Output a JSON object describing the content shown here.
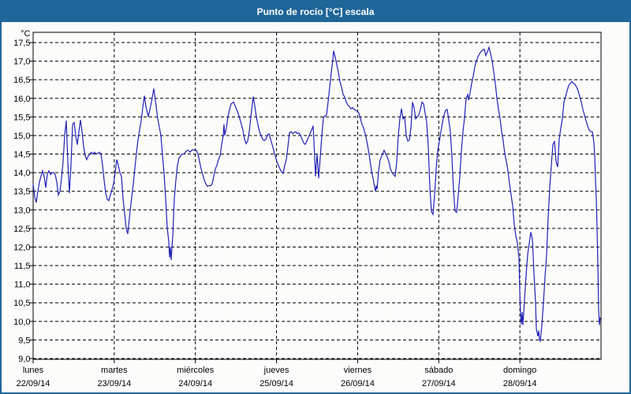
{
  "window": {
    "title": "Punto de rocío [°C] escala",
    "title_bar_color": "#1f6699",
    "border_color": "#1f6699",
    "background_color": "#fcfdfa"
  },
  "chart_data": {
    "type": "line",
    "title": "Punto de rocío [°C] escala",
    "ylabel": "°C",
    "ylim": [
      9.0,
      17.5
    ],
    "y_tick_step": 0.5,
    "y_tick_labels": [
      "17,5",
      "17,0",
      "16,5",
      "16,0",
      "15,5",
      "15,0",
      "14,5",
      "14,0",
      "13,5",
      "13,0",
      "12,5",
      "12,0",
      "11,5",
      "11,0",
      "10,5",
      "10,0",
      "9,5",
      "9,0"
    ],
    "grid": "dashed",
    "legend": "none",
    "line_color": "#2121b8",
    "grid_color": "#000000",
    "x_days": [
      {
        "name": "lunes",
        "date": "22/09/14"
      },
      {
        "name": "martes",
        "date": "23/09/14"
      },
      {
        "name": "miércoles",
        "date": "24/09/14"
      },
      {
        "name": "jueves",
        "date": "25/09/14"
      },
      {
        "name": "viernes",
        "date": "26/09/14"
      },
      {
        "name": "sábado",
        "date": "27/09/14"
      },
      {
        "name": "domingo",
        "date": "28/09/14"
      }
    ],
    "x_note": "x is time in 1/720 of the displayed week (0 = lunes 22/09 00:00, 720 = end of domingo 28/09); y is dew point in °C",
    "x_units_total": 720,
    "points": [
      [
        0,
        13.7
      ],
      [
        2,
        13.35
      ],
      [
        4,
        13.2
      ],
      [
        6,
        13.5
      ],
      [
        8,
        13.75
      ],
      [
        10,
        13.9
      ],
      [
        12,
        14.05
      ],
      [
        14,
        13.9
      ],
      [
        16,
        13.6
      ],
      [
        18,
        13.95
      ],
      [
        20,
        14.05
      ],
      [
        22,
        13.95
      ],
      [
        24,
        14.0
      ],
      [
        26,
        14.0
      ],
      [
        28,
        13.95
      ],
      [
        30,
        13.75
      ],
      [
        32,
        13.4
      ],
      [
        34,
        13.5
      ],
      [
        36,
        13.85
      ],
      [
        38,
        14.3
      ],
      [
        40,
        15.0
      ],
      [
        42,
        15.4
      ],
      [
        44,
        14.3
      ],
      [
        46,
        13.45
      ],
      [
        48,
        14.2
      ],
      [
        50,
        15.3
      ],
      [
        52,
        15.35
      ],
      [
        54,
        15.0
      ],
      [
        56,
        14.75
      ],
      [
        58,
        15.1
      ],
      [
        60,
        15.42
      ],
      [
        62,
        15.1
      ],
      [
        64,
        14.7
      ],
      [
        66,
        14.45
      ],
      [
        68,
        14.35
      ],
      [
        70,
        14.45
      ],
      [
        72,
        14.5
      ],
      [
        74,
        14.55
      ],
      [
        76,
        14.5
      ],
      [
        78,
        14.55
      ],
      [
        80,
        14.5
      ],
      [
        82,
        14.52
      ],
      [
        84,
        14.55
      ],
      [
        86,
        14.5
      ],
      [
        88,
        14.2
      ],
      [
        90,
        13.8
      ],
      [
        92,
        13.45
      ],
      [
        94,
        13.28
      ],
      [
        96,
        13.25
      ],
      [
        98,
        13.4
      ],
      [
        100,
        13.55
      ],
      [
        102,
        13.7
      ],
      [
        104,
        14.0
      ],
      [
        106,
        14.35
      ],
      [
        108,
        14.2
      ],
      [
        110,
        14.0
      ],
      [
        112,
        13.9
      ],
      [
        114,
        13.3
      ],
      [
        116,
        12.9
      ],
      [
        118,
        12.5
      ],
      [
        120,
        12.35
      ],
      [
        123,
        12.98
      ],
      [
        127,
        13.7
      ],
      [
        130,
        14.33
      ],
      [
        133,
        14.9
      ],
      [
        137,
        15.4
      ],
      [
        139,
        15.75
      ],
      [
        141,
        16.07
      ],
      [
        143,
        15.78
      ],
      [
        146,
        15.5
      ],
      [
        150,
        15.9
      ],
      [
        153,
        16.26
      ],
      [
        156,
        15.78
      ],
      [
        158,
        15.45
      ],
      [
        162,
        15.0
      ],
      [
        164,
        14.47
      ],
      [
        166,
        13.98
      ],
      [
        168,
        13.3
      ],
      [
        170,
        12.53
      ],
      [
        172,
        12.14
      ],
      [
        173,
        11.72
      ],
      [
        174,
        12.0
      ],
      [
        175,
        11.65
      ],
      [
        177,
        12.28
      ],
      [
        179,
        13.3
      ],
      [
        181,
        13.8
      ],
      [
        183,
        14.2
      ],
      [
        185,
        14.4
      ],
      [
        187,
        14.45
      ],
      [
        189,
        14.5
      ],
      [
        191,
        14.5
      ],
      [
        193,
        14.55
      ],
      [
        195,
        14.6
      ],
      [
        197,
        14.6
      ],
      [
        199,
        14.55
      ],
      [
        201,
        14.6
      ],
      [
        203,
        14.62
      ],
      [
        205,
        14.6
      ],
      [
        207,
        14.6
      ],
      [
        209,
        14.5
      ],
      [
        211,
        14.3
      ],
      [
        213,
        14.1
      ],
      [
        215,
        13.95
      ],
      [
        217,
        13.8
      ],
      [
        219,
        13.7
      ],
      [
        221,
        13.63
      ],
      [
        223,
        13.65
      ],
      [
        225,
        13.65
      ],
      [
        227,
        13.7
      ],
      [
        229,
        13.9
      ],
      [
        231,
        14.1
      ],
      [
        233,
        14.2
      ],
      [
        235,
        14.35
      ],
      [
        237,
        14.45
      ],
      [
        239,
        14.75
      ],
      [
        241,
        15.0
      ],
      [
        242,
        15.3
      ],
      [
        243,
        15.0
      ],
      [
        245,
        15.2
      ],
      [
        247,
        15.5
      ],
      [
        249,
        15.7
      ],
      [
        251,
        15.85
      ],
      [
        254,
        15.9
      ],
      [
        256,
        15.8
      ],
      [
        258,
        15.7
      ],
      [
        260,
        15.6
      ],
      [
        262,
        15.45
      ],
      [
        264,
        15.3
      ],
      [
        266,
        15.15
      ],
      [
        268,
        14.9
      ],
      [
        270,
        14.78
      ],
      [
        272,
        14.85
      ],
      [
        274,
        15.1
      ],
      [
        276,
        15.5
      ],
      [
        278,
        15.85
      ],
      [
        279,
        16.05
      ],
      [
        281,
        15.8
      ],
      [
        283,
        15.5
      ],
      [
        285,
        15.3
      ],
      [
        287,
        15.1
      ],
      [
        289,
        15.0
      ],
      [
        291,
        14.9
      ],
      [
        293,
        14.86
      ],
      [
        295,
        14.9
      ],
      [
        297,
        15.0
      ],
      [
        299,
        15.05
      ],
      [
        301,
        14.9
      ],
      [
        303,
        14.76
      ],
      [
        305,
        14.6
      ],
      [
        307,
        14.45
      ],
      [
        309,
        14.3
      ],
      [
        311,
        14.2
      ],
      [
        313,
        14.1
      ],
      [
        315,
        14.02
      ],
      [
        317,
        13.98
      ],
      [
        319,
        14.2
      ],
      [
        321,
        14.35
      ],
      [
        323,
        14.7
      ],
      [
        325,
        15.07
      ],
      [
        327,
        15.1
      ],
      [
        329,
        15.05
      ],
      [
        331,
        15.08
      ],
      [
        333,
        15.1
      ],
      [
        335,
        15.05
      ],
      [
        337,
        15.07
      ],
      [
        339,
        15.0
      ],
      [
        341,
        14.9
      ],
      [
        343,
        14.8
      ],
      [
        345,
        14.76
      ],
      [
        347,
        14.85
      ],
      [
        349,
        14.95
      ],
      [
        351,
        15.05
      ],
      [
        353,
        15.15
      ],
      [
        355,
        15.26
      ],
      [
        357,
        14.4
      ],
      [
        358,
        13.9
      ],
      [
        360,
        14.5
      ],
      [
        362,
        13.85
      ],
      [
        364,
        14.4
      ],
      [
        366,
        15.0
      ],
      [
        368,
        15.47
      ],
      [
        370,
        15.53
      ],
      [
        372,
        15.55
      ],
      [
        374,
        15.9
      ],
      [
        376,
        16.3
      ],
      [
        378,
        16.7
      ],
      [
        380,
        17.05
      ],
      [
        381,
        17.28
      ],
      [
        383,
        17.1
      ],
      [
        385,
        16.9
      ],
      [
        387,
        16.7
      ],
      [
        389,
        16.45
      ],
      [
        391,
        16.3
      ],
      [
        393,
        16.1
      ],
      [
        395,
        16.04
      ],
      [
        397,
        15.9
      ],
      [
        399,
        15.82
      ],
      [
        401,
        15.78
      ],
      [
        403,
        15.72
      ],
      [
        405,
        15.75
      ],
      [
        407,
        15.7
      ],
      [
        409,
        15.68
      ],
      [
        411,
        15.65
      ],
      [
        413,
        15.6
      ],
      [
        415,
        15.45
      ],
      [
        417,
        15.3
      ],
      [
        419,
        15.2
      ],
      [
        421,
        15.05
      ],
      [
        423,
        14.85
      ],
      [
        425,
        14.62
      ],
      [
        427,
        14.35
      ],
      [
        429,
        14.05
      ],
      [
        431,
        13.85
      ],
      [
        433,
        13.6
      ],
      [
        434,
        13.5
      ],
      [
        435,
        13.65
      ],
      [
        436,
        13.55
      ],
      [
        438,
        14.05
      ],
      [
        440,
        14.35
      ],
      [
        443,
        14.5
      ],
      [
        445,
        14.6
      ],
      [
        447,
        14.5
      ],
      [
        449,
        14.42
      ],
      [
        451,
        14.3
      ],
      [
        453,
        14.1
      ],
      [
        455,
        14.0
      ],
      [
        457,
        13.95
      ],
      [
        459,
        13.9
      ],
      [
        461,
        14.3
      ],
      [
        463,
        15.0
      ],
      [
        465,
        15.45
      ],
      [
        467,
        15.72
      ],
      [
        469,
        15.45
      ],
      [
        471,
        15.5
      ],
      [
        473,
        15.0
      ],
      [
        475,
        14.85
      ],
      [
        477,
        14.88
      ],
      [
        479,
        15.2
      ],
      [
        481,
        15.9
      ],
      [
        483,
        15.75
      ],
      [
        485,
        15.45
      ],
      [
        487,
        15.5
      ],
      [
        489,
        15.55
      ],
      [
        491,
        15.7
      ],
      [
        493,
        15.9
      ],
      [
        495,
        15.85
      ],
      [
        497,
        15.6
      ],
      [
        499,
        15.35
      ],
      [
        501,
        14.7
      ],
      [
        503,
        13.6
      ],
      [
        505,
        12.95
      ],
      [
        507,
        12.88
      ],
      [
        509,
        13.4
      ],
      [
        511,
        14.1
      ],
      [
        513,
        14.6
      ],
      [
        515,
        14.83
      ],
      [
        517,
        15.1
      ],
      [
        519,
        15.35
      ],
      [
        521,
        15.55
      ],
      [
        523,
        15.68
      ],
      [
        525,
        15.7
      ],
      [
        527,
        15.4
      ],
      [
        529,
        15.1
      ],
      [
        531,
        14.4
      ],
      [
        533,
        13.5
      ],
      [
        535,
        12.96
      ],
      [
        537,
        12.93
      ],
      [
        539,
        13.4
      ],
      [
        541,
        13.9
      ],
      [
        543,
        14.6
      ],
      [
        545,
        15.1
      ],
      [
        547,
        15.5
      ],
      [
        549,
        16.0
      ],
      [
        551,
        16.1
      ],
      [
        552,
        15.95
      ],
      [
        554,
        16.15
      ],
      [
        556,
        16.4
      ],
      [
        558,
        16.6
      ],
      [
        560,
        16.85
      ],
      [
        562,
        17.0
      ],
      [
        564,
        17.12
      ],
      [
        566,
        17.2
      ],
      [
        568,
        17.26
      ],
      [
        570,
        17.3
      ],
      [
        572,
        17.32
      ],
      [
        574,
        17.15
      ],
      [
        576,
        17.25
      ],
      [
        578,
        17.37
      ],
      [
        580,
        17.2
      ],
      [
        582,
        17.0
      ],
      [
        584,
        16.7
      ],
      [
        586,
        16.4
      ],
      [
        588,
        16.0
      ],
      [
        590,
        15.7
      ],
      [
        592,
        15.45
      ],
      [
        594,
        15.1
      ],
      [
        596,
        14.85
      ],
      [
        598,
        14.5
      ],
      [
        600,
        14.3
      ],
      [
        602,
        14.05
      ],
      [
        604,
        13.7
      ],
      [
        606,
        13.4
      ],
      [
        608,
        13.1
      ],
      [
        610,
        12.6
      ],
      [
        612,
        12.3
      ],
      [
        614,
        12.1
      ],
      [
        616,
        11.7
      ],
      [
        617,
        10.8
      ],
      [
        618,
        10.2
      ],
      [
        619,
        9.92
      ],
      [
        620,
        10.25
      ],
      [
        621,
        9.9
      ],
      [
        623,
        10.6
      ],
      [
        625,
        11.25
      ],
      [
        627,
        11.8
      ],
      [
        629,
        12.1
      ],
      [
        631,
        12.4
      ],
      [
        633,
        12.2
      ],
      [
        635,
        11.3
      ],
      [
        637,
        10.5
      ],
      [
        638,
        9.8
      ],
      [
        640,
        9.6
      ],
      [
        641,
        9.75
      ],
      [
        642,
        9.5
      ],
      [
        643,
        9.47
      ],
      [
        645,
        9.9
      ],
      [
        647,
        10.5
      ],
      [
        649,
        11.2
      ],
      [
        651,
        11.8
      ],
      [
        653,
        12.8
      ],
      [
        655,
        13.6
      ],
      [
        657,
        14.2
      ],
      [
        659,
        14.75
      ],
      [
        661,
        14.85
      ],
      [
        663,
        14.3
      ],
      [
        665,
        14.15
      ],
      [
        667,
        14.9
      ],
      [
        669,
        15.2
      ],
      [
        671,
        15.45
      ],
      [
        673,
        15.9
      ],
      [
        675,
        16.05
      ],
      [
        677,
        16.2
      ],
      [
        679,
        16.35
      ],
      [
        681,
        16.4
      ],
      [
        683,
        16.45
      ],
      [
        685,
        16.4
      ],
      [
        687,
        16.38
      ],
      [
        689,
        16.3
      ],
      [
        691,
        16.2
      ],
      [
        693,
        16.05
      ],
      [
        695,
        15.9
      ],
      [
        697,
        15.7
      ],
      [
        699,
        15.55
      ],
      [
        701,
        15.4
      ],
      [
        703,
        15.25
      ],
      [
        705,
        15.15
      ],
      [
        707,
        15.1
      ],
      [
        709,
        15.1
      ],
      [
        711,
        14.8
      ],
      [
        712,
        14.45
      ],
      [
        713,
        13.8
      ],
      [
        714,
        13.3
      ],
      [
        715,
        12.5
      ],
      [
        716,
        11.5
      ],
      [
        717,
        10.3
      ],
      [
        718,
        9.9
      ],
      [
        719,
        10.1
      ]
    ]
  }
}
